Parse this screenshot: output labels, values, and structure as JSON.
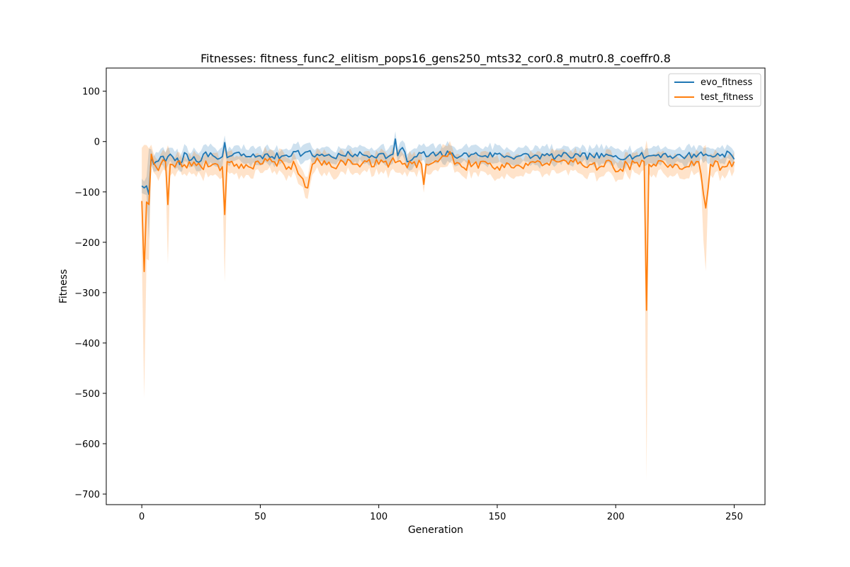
{
  "chart_data": {
    "type": "line",
    "title": "Fitnesses: fitness_func2_elitism_pops16_gens250_mts32_cor0.8_mutr0.8_coeffr0.8",
    "xlabel": "Generation",
    "ylabel": "Fitness",
    "xlim": [
      -15,
      263
    ],
    "ylim": [
      -721,
      146
    ],
    "xticks": [
      0,
      50,
      100,
      150,
      200,
      250
    ],
    "yticks": [
      100,
      0,
      -100,
      -200,
      -300,
      -400,
      -500,
      -600,
      -700
    ],
    "grid": false,
    "legend_position": "top-right",
    "series": [
      {
        "name": "evo_fitness",
        "color": "#1f77b4",
        "band": true,
        "band_halfwidth": 12,
        "anchors": [
          [
            0,
            -88
          ],
          [
            1,
            -92
          ],
          [
            2,
            -88
          ],
          [
            3,
            -105
          ],
          [
            4,
            -30
          ],
          [
            5,
            -45
          ],
          [
            6,
            -40
          ],
          [
            8,
            -30
          ],
          [
            10,
            -40
          ],
          [
            11,
            -30
          ],
          [
            12,
            -25
          ],
          [
            14,
            -38
          ],
          [
            17,
            -40
          ],
          [
            18,
            -22
          ],
          [
            20,
            -38
          ],
          [
            22,
            -30
          ],
          [
            25,
            -38
          ],
          [
            26,
            -25
          ],
          [
            28,
            -30
          ],
          [
            30,
            -28
          ],
          [
            32,
            -35
          ],
          [
            34,
            -30
          ],
          [
            35,
            -2
          ],
          [
            36,
            -32
          ],
          [
            38,
            -28
          ],
          [
            40,
            -22
          ],
          [
            42,
            -28
          ],
          [
            46,
            -30
          ],
          [
            50,
            -28
          ],
          [
            55,
            -30
          ],
          [
            60,
            -28
          ],
          [
            65,
            -20
          ],
          [
            68,
            -25
          ],
          [
            70,
            -20
          ],
          [
            72,
            -28
          ],
          [
            76,
            -25
          ],
          [
            80,
            -30
          ],
          [
            85,
            -28
          ],
          [
            90,
            -25
          ],
          [
            95,
            -28
          ],
          [
            100,
            -25
          ],
          [
            104,
            -30
          ],
          [
            106,
            -25
          ],
          [
            107,
            5
          ],
          [
            108,
            -28
          ],
          [
            110,
            -12
          ],
          [
            112,
            -40
          ],
          [
            116,
            -30
          ],
          [
            119,
            -20
          ],
          [
            120,
            -30
          ],
          [
            125,
            -25
          ],
          [
            130,
            -25
          ],
          [
            135,
            -28
          ],
          [
            140,
            -25
          ],
          [
            145,
            -28
          ],
          [
            150,
            -25
          ],
          [
            155,
            -30
          ],
          [
            160,
            -28
          ],
          [
            165,
            -30
          ],
          [
            170,
            -28
          ],
          [
            175,
            -30
          ],
          [
            180,
            -28
          ],
          [
            185,
            -30
          ],
          [
            190,
            -28
          ],
          [
            195,
            -30
          ],
          [
            200,
            -28
          ],
          [
            205,
            -30
          ],
          [
            210,
            -28
          ],
          [
            213,
            -30
          ],
          [
            215,
            -28
          ],
          [
            220,
            -25
          ],
          [
            225,
            -30
          ],
          [
            230,
            -28
          ],
          [
            235,
            -25
          ],
          [
            240,
            -28
          ],
          [
            245,
            -25
          ],
          [
            248,
            -22
          ],
          [
            250,
            -35
          ]
        ],
        "jitter": 7,
        "seed": 7
      },
      {
        "name": "test_fitness",
        "color": "#ff7f0e",
        "band": true,
        "band_halfwidth": 16,
        "anchors": [
          [
            0,
            -118
          ],
          [
            1,
            -258
          ],
          [
            2,
            -120
          ],
          [
            3,
            -125
          ],
          [
            4,
            -25
          ],
          [
            6,
            -50
          ],
          [
            8,
            -45
          ],
          [
            10,
            -40
          ],
          [
            11,
            -125
          ],
          [
            12,
            -45
          ],
          [
            15,
            -40
          ],
          [
            17,
            -50
          ],
          [
            20,
            -40
          ],
          [
            25,
            -50
          ],
          [
            30,
            -45
          ],
          [
            34,
            -50
          ],
          [
            35,
            -145
          ],
          [
            36,
            -40
          ],
          [
            40,
            -45
          ],
          [
            45,
            -50
          ],
          [
            50,
            -45
          ],
          [
            55,
            -40
          ],
          [
            60,
            -45
          ],
          [
            65,
            -50
          ],
          [
            70,
            -92
          ],
          [
            72,
            -45
          ],
          [
            75,
            -40
          ],
          [
            80,
            -50
          ],
          [
            85,
            -40
          ],
          [
            90,
            -45
          ],
          [
            95,
            -40
          ],
          [
            100,
            -45
          ],
          [
            105,
            -40
          ],
          [
            110,
            -45
          ],
          [
            115,
            -40
          ],
          [
            118,
            -45
          ],
          [
            119,
            -85
          ],
          [
            120,
            -45
          ],
          [
            125,
            -40
          ],
          [
            130,
            -20
          ],
          [
            132,
            -45
          ],
          [
            135,
            -50
          ],
          [
            140,
            -45
          ],
          [
            145,
            -40
          ],
          [
            150,
            -50
          ],
          [
            155,
            -45
          ],
          [
            160,
            -50
          ],
          [
            165,
            -40
          ],
          [
            170,
            -45
          ],
          [
            175,
            -40
          ],
          [
            180,
            -45
          ],
          [
            185,
            -40
          ],
          [
            190,
            -45
          ],
          [
            195,
            -50
          ],
          [
            198,
            -40
          ],
          [
            200,
            -60
          ],
          [
            205,
            -45
          ],
          [
            210,
            -50
          ],
          [
            212,
            -40
          ],
          [
            213,
            -335
          ],
          [
            214,
            -45
          ],
          [
            215,
            -50
          ],
          [
            220,
            -40
          ],
          [
            225,
            -45
          ],
          [
            230,
            -50
          ],
          [
            235,
            -40
          ],
          [
            238,
            -132
          ],
          [
            240,
            -45
          ],
          [
            245,
            -50
          ],
          [
            250,
            -40
          ]
        ],
        "jitter": 10,
        "seed": 19
      }
    ]
  }
}
